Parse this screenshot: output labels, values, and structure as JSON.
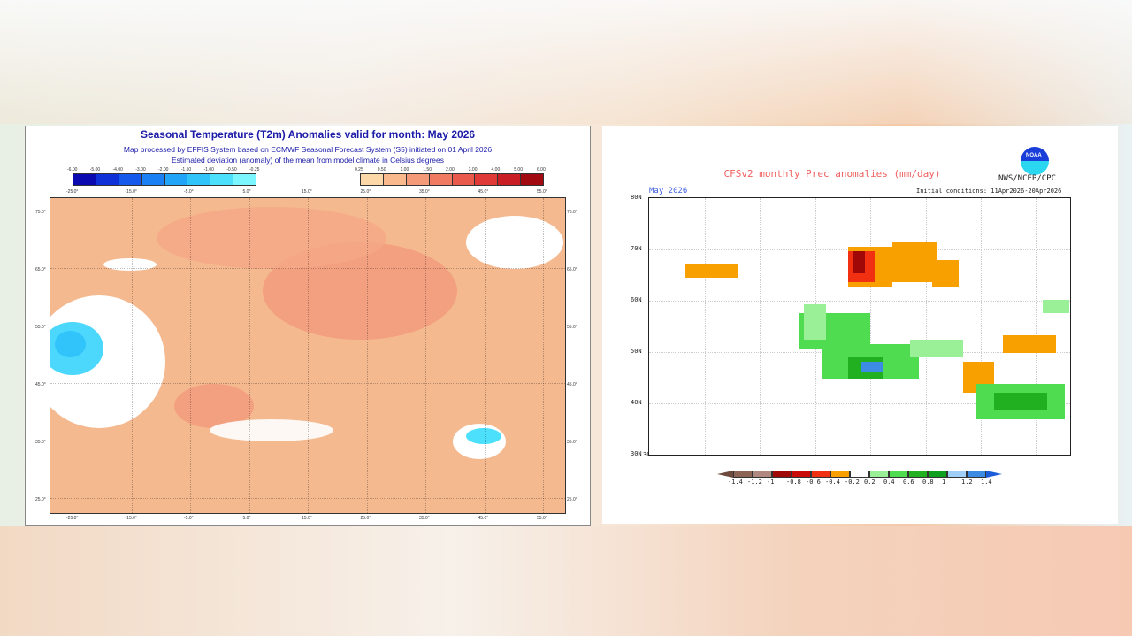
{
  "left_map": {
    "title": "Seasonal Temperature (T2m) Anomalies valid for month: May 2026",
    "subtitle1": "Map processed by EFFIS System based on ECMWF Seasonal Forecast System (S5) initiated on 01 April 2026",
    "subtitle2": "Estimated deviation (anomaly) of the mean from model climate in Celsius degrees",
    "neg_scale": [
      "-6.00",
      "-5.00",
      "-4.00",
      "-3.00",
      "-2.00",
      "-1.50",
      "-1.00",
      "-0.50",
      "-0.25"
    ],
    "neg_colors": [
      "#0a0ab0",
      "#1030d8",
      "#1458ec",
      "#1a80f4",
      "#22a4f8",
      "#30c4fa",
      "#4ce0fc",
      "#7cf6fe"
    ],
    "pos_scale": [
      "0.25",
      "0.50",
      "1.00",
      "1.50",
      "2.00",
      "3.00",
      "4.00",
      "5.00",
      "6.00"
    ],
    "pos_colors": [
      "#fcd8a8",
      "#f9b98c",
      "#f59a78",
      "#f07a62",
      "#ea5a4c",
      "#e03a38",
      "#c81e24",
      "#a00a10"
    ],
    "lon_labels": [
      "-25.0°",
      "-15.0°",
      "-5.0°",
      "5.0°",
      "15.0°",
      "25.0°",
      "35.0°",
      "45.0°",
      "55.0°"
    ],
    "lat_labels": [
      "75.0°",
      "65.0°",
      "55.0°",
      "45.0°",
      "35.0°",
      "25.0°"
    ]
  },
  "right_map": {
    "title": "CFSv2 monthly Prec anomalies (mm/day)",
    "agency": "NWS/NCEP/CPC",
    "logo_text": "NOAA",
    "month": "May 2026",
    "initial_conditions": "Initial conditions: 11Apr2026-20Apr2026",
    "lat_labels": [
      "80N",
      "70N",
      "60N",
      "50N",
      "40N",
      "30N"
    ],
    "lon_labels": [
      "30W",
      "20W",
      "10W",
      "0",
      "10E",
      "20E",
      "30E",
      "40E"
    ],
    "scale_labels": [
      "-1.4",
      "-1.2",
      "-1",
      "-0.8",
      "-0.6",
      "-0.4",
      "-0.2",
      "0.2",
      "0.4",
      "0.6",
      "0.8",
      "1",
      "1.2",
      "1.4"
    ],
    "scale_colors": [
      "#6e4a3c",
      "#8c6454",
      "#b08880",
      "#a00808",
      "#c80a0a",
      "#f03010",
      "#f7a000",
      "#ffffff",
      "#9af096",
      "#50dc50",
      "#20b020",
      "#10a020",
      "#a0d0f8",
      "#3c8ce6",
      "#1c5cd8"
    ]
  }
}
